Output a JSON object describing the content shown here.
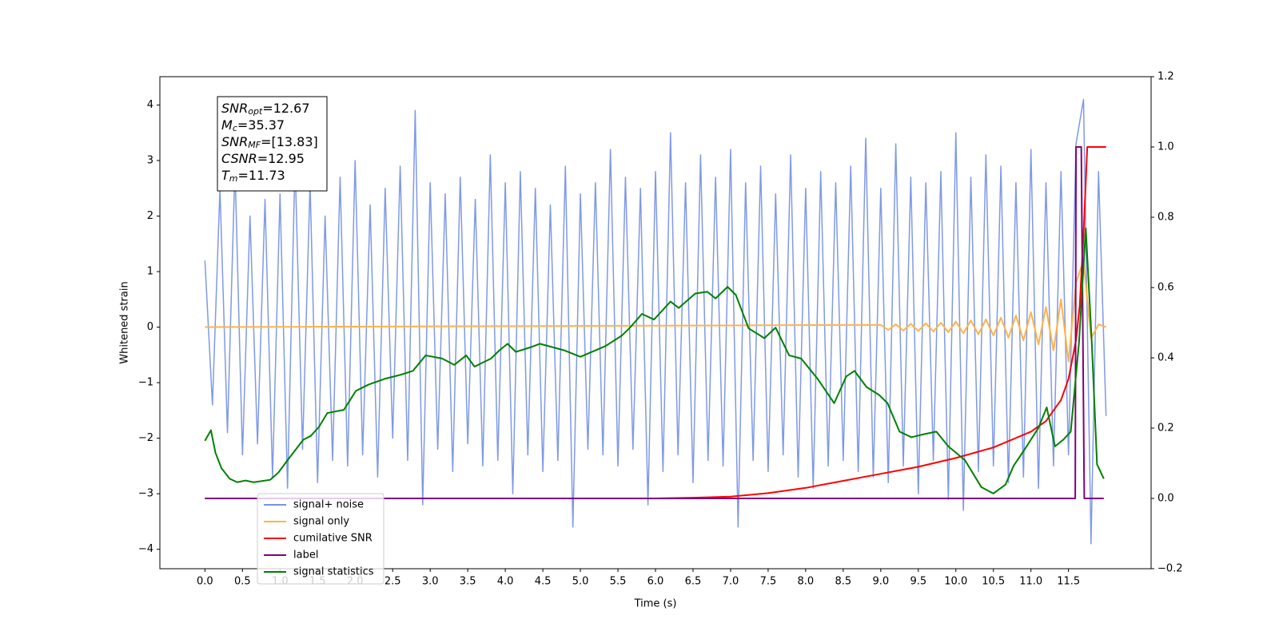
{
  "chart_data": {
    "type": "line",
    "xlabel": "Time (s)",
    "ylabel": "Whitened strain",
    "xlim": [
      -0.6,
      12.6
    ],
    "ylim": [
      -4.35,
      4.51
    ],
    "y2lim": [
      -0.2,
      1.2
    ],
    "xticks": [
      {
        "value": 0,
        "label": "0.0"
      },
      0.5,
      {
        "value": 1,
        "label": "1.0"
      },
      1.5,
      {
        "value": 2,
        "label": "2.0"
      },
      2.5,
      {
        "value": 3,
        "label": "3.0"
      },
      3.5,
      {
        "value": 4,
        "label": "4.0"
      },
      4.5,
      {
        "value": 5,
        "label": "5.0"
      },
      5.5,
      {
        "value": 6,
        "label": "6.0"
      },
      6.5,
      {
        "value": 7,
        "label": "7.0"
      },
      7.5,
      {
        "value": 8,
        "label": "8.0"
      },
      8.5,
      {
        "value": 9,
        "label": "9.0"
      },
      9.5,
      {
        "value": 10,
        "label": "10.0"
      },
      10.5,
      {
        "value": 11,
        "label": "11.0"
      },
      11.5
    ],
    "yticks": [
      {
        "value": -4,
        "label": "−4"
      },
      {
        "value": -3,
        "label": "−3"
      },
      {
        "value": -2,
        "label": "−2"
      },
      {
        "value": -1,
        "label": "−1"
      },
      0,
      1,
      2,
      3,
      4
    ],
    "y2ticks": [
      {
        "value": -0.2,
        "label": "−0.2"
      },
      {
        "value": 0,
        "label": "0.0"
      },
      0.2,
      0.4,
      0.6,
      0.8,
      {
        "value": 1,
        "label": "1.0"
      },
      1.2
    ],
    "annotation": [
      {
        "base": "SNR",
        "sub": "opt",
        "text": "=12.67"
      },
      {
        "base": "M",
        "sub": "c",
        "text": "=35.37"
      },
      {
        "base": "SNR",
        "sub": "MF",
        "text": "=[13.83]"
      },
      {
        "base": "CSNR",
        "text": "=12.95"
      },
      {
        "base": "T",
        "sub": "m",
        "text": "=11.73"
      }
    ],
    "series": [
      {
        "name": "signal+ noise",
        "color": "#7893e6",
        "x": [
          0,
          0.1,
          0.2,
          0.3,
          0.4,
          0.5,
          0.6,
          0.7,
          0.8,
          0.9,
          1,
          1.1,
          1.2,
          1.3,
          1.4,
          1.5,
          1.6,
          1.7,
          1.8,
          1.9,
          2,
          2.1,
          2.2,
          2.3,
          2.4,
          2.5,
          2.6,
          2.7,
          2.8,
          2.9,
          3,
          3.1,
          3.2,
          3.3,
          3.4,
          3.5,
          3.6,
          3.7,
          3.8,
          3.9,
          4,
          4.1,
          4.2,
          4.3,
          4.4,
          4.5,
          4.6,
          4.7,
          4.8,
          4.9,
          5,
          5.1,
          5.2,
          5.3,
          5.4,
          5.5,
          5.6,
          5.7,
          5.8,
          5.9,
          6,
          6.1,
          6.2,
          6.3,
          6.4,
          6.5,
          6.6,
          6.7,
          6.8,
          6.9,
          7,
          7.1,
          7.2,
          7.3,
          7.4,
          7.5,
          7.6,
          7.7,
          7.8,
          7.9,
          8,
          8.1,
          8.2,
          8.3,
          8.4,
          8.5,
          8.6,
          8.7,
          8.8,
          8.9,
          9,
          9.1,
          9.2,
          9.3,
          9.4,
          9.5,
          9.6,
          9.7,
          9.8,
          9.9,
          10,
          10.1,
          10.2,
          10.3,
          10.4,
          10.5,
          10.6,
          10.7,
          10.8,
          10.9,
          11,
          11.1,
          11.2,
          11.3,
          11.4,
          11.5,
          11.6,
          11.7,
          11.8,
          11.9,
          12
        ],
        "values": [
          1.2,
          -1.4,
          2.5,
          -1.9,
          2.9,
          -2.3,
          2.0,
          -2.1,
          2.3,
          -2.7,
          2.4,
          -2.9,
          3.0,
          -2.2,
          2.6,
          -2.8,
          2.0,
          -2.4,
          2.7,
          -2.5,
          3.0,
          -2.3,
          2.2,
          -2.7,
          2.5,
          -2.0,
          2.9,
          -2.4,
          3.9,
          -3.2,
          2.6,
          -2.2,
          2.4,
          -2.6,
          2.7,
          -2.1,
          2.3,
          -2.5,
          3.1,
          -2.4,
          2.6,
          -3.0,
          2.8,
          -2.3,
          2.5,
          -2.6,
          2.2,
          -2.4,
          2.9,
          -3.6,
          2.4,
          -2.2,
          2.6,
          -2.3,
          3.2,
          -2.5,
          2.7,
          -2.2,
          2.5,
          -3.2,
          2.8,
          -2.6,
          3.5,
          -2.3,
          2.6,
          -2.8,
          3.1,
          -2.4,
          2.7,
          -2.5,
          3.2,
          -3.6,
          2.6,
          -2.4,
          2.9,
          -2.6,
          2.4,
          -2.3,
          3.1,
          -2.7,
          2.5,
          -2.9,
          2.8,
          -2.5,
          2.6,
          -2.4,
          2.9,
          -2.6,
          3.4,
          -2.7,
          2.5,
          -2.8,
          3.3,
          -2.5,
          2.7,
          -3.0,
          2.6,
          -2.4,
          2.8,
          -3.1,
          3.5,
          -3.3,
          2.7,
          -2.6,
          3.1,
          -2.5,
          2.9,
          -2.8,
          2.6,
          -2.7,
          3.2,
          -2.9,
          2.6,
          -2.5,
          2.8,
          -2.3,
          3.3,
          4.1,
          -3.9,
          2.8,
          -1.6
        ]
      },
      {
        "name": "signal only",
        "color": "#ffb347",
        "x": [
          0,
          9,
          9.1,
          9.2,
          9.3,
          9.4,
          9.5,
          9.6,
          9.7,
          9.8,
          9.9,
          10,
          10.1,
          10.2,
          10.3,
          10.4,
          10.5,
          10.6,
          10.7,
          10.8,
          10.9,
          11,
          11.1,
          11.2,
          11.3,
          11.4,
          11.5,
          11.6,
          11.7,
          11.8,
          11.9,
          12
        ],
        "values": [
          0,
          0.04,
          -0.05,
          0.05,
          -0.06,
          0.06,
          -0.07,
          0.07,
          -0.08,
          0.08,
          -0.09,
          0.1,
          -0.11,
          0.12,
          -0.13,
          0.14,
          -0.15,
          0.17,
          -0.19,
          0.21,
          -0.24,
          0.27,
          -0.31,
          0.36,
          -0.42,
          0.5,
          -0.62,
          0.8,
          1.2,
          -0.2,
          0.05,
          0
        ]
      },
      {
        "name": "cumilative SNR",
        "color": "#ff0000",
        "axis": "y2",
        "x": [
          0,
          6,
          6.5,
          7,
          7.5,
          8,
          8.5,
          9,
          9.5,
          10,
          10.5,
          11,
          11.2,
          11.4,
          11.5,
          11.6,
          11.65,
          11.7,
          11.73,
          11.75,
          12
        ],
        "values": [
          0,
          0,
          0.002,
          0.005,
          0.015,
          0.03,
          0.05,
          0.07,
          0.09,
          0.115,
          0.145,
          0.19,
          0.22,
          0.28,
          0.34,
          0.45,
          0.55,
          0.75,
          0.9,
          1.0,
          1.0
        ]
      },
      {
        "name": "label",
        "color": "#800080",
        "axis": "y2",
        "x": [
          0,
          11.59,
          11.6,
          11.67,
          11.71,
          11.97
        ],
        "values": [
          0,
          0,
          1,
          1,
          0,
          0
        ]
      },
      {
        "name": "signal statistics",
        "color": "#008000",
        "axis": "y2",
        "x": [
          0,
          0.08,
          0.14,
          0.22,
          0.33,
          0.43,
          0.54,
          0.65,
          0.87,
          0.98,
          1.09,
          1.31,
          1.41,
          1.52,
          1.63,
          1.85,
          2.01,
          2.18,
          2.39,
          2.61,
          2.77,
          2.94,
          3.16,
          3.32,
          3.48,
          3.59,
          3.81,
          3.92,
          4.03,
          4.14,
          4.35,
          4.46,
          4.79,
          5,
          5.33,
          5.55,
          5.66,
          5.82,
          5.98,
          6.2,
          6.31,
          6.53,
          6.69,
          6.8,
          6.96,
          7.07,
          7.24,
          7.45,
          7.6,
          7.78,
          7.94,
          8.16,
          8.38,
          8.54,
          8.65,
          8.81,
          8.98,
          9.09,
          9.25,
          9.41,
          9.58,
          9.74,
          9.9,
          10.12,
          10.34,
          10.5,
          10.66,
          10.77,
          10.93,
          11.1,
          11.21,
          11.32,
          11.43,
          11.53,
          11.64,
          11.73,
          11.81,
          11.88,
          11.97
        ],
        "values": [
          0.164,
          0.194,
          0.13,
          0.086,
          0.056,
          0.046,
          0.051,
          0.046,
          0.053,
          0.074,
          0.106,
          0.167,
          0.178,
          0.204,
          0.243,
          0.252,
          0.306,
          0.324,
          0.34,
          0.352,
          0.363,
          0.407,
          0.398,
          0.38,
          0.407,
          0.375,
          0.398,
          0.421,
          0.44,
          0.417,
          0.431,
          0.44,
          0.421,
          0.403,
          0.433,
          0.463,
          0.486,
          0.525,
          0.509,
          0.56,
          0.542,
          0.583,
          0.588,
          0.569,
          0.602,
          0.579,
          0.484,
          0.456,
          0.486,
          0.407,
          0.398,
          0.34,
          0.271,
          0.347,
          0.363,
          0.317,
          0.294,
          0.271,
          0.19,
          0.174,
          0.183,
          0.19,
          0.148,
          0.109,
          0.032,
          0.014,
          0.039,
          0.093,
          0.144,
          0.201,
          0.259,
          0.148,
          0.167,
          0.19,
          0.444,
          0.769,
          0.444,
          0.097,
          0.056
        ]
      }
    ]
  }
}
